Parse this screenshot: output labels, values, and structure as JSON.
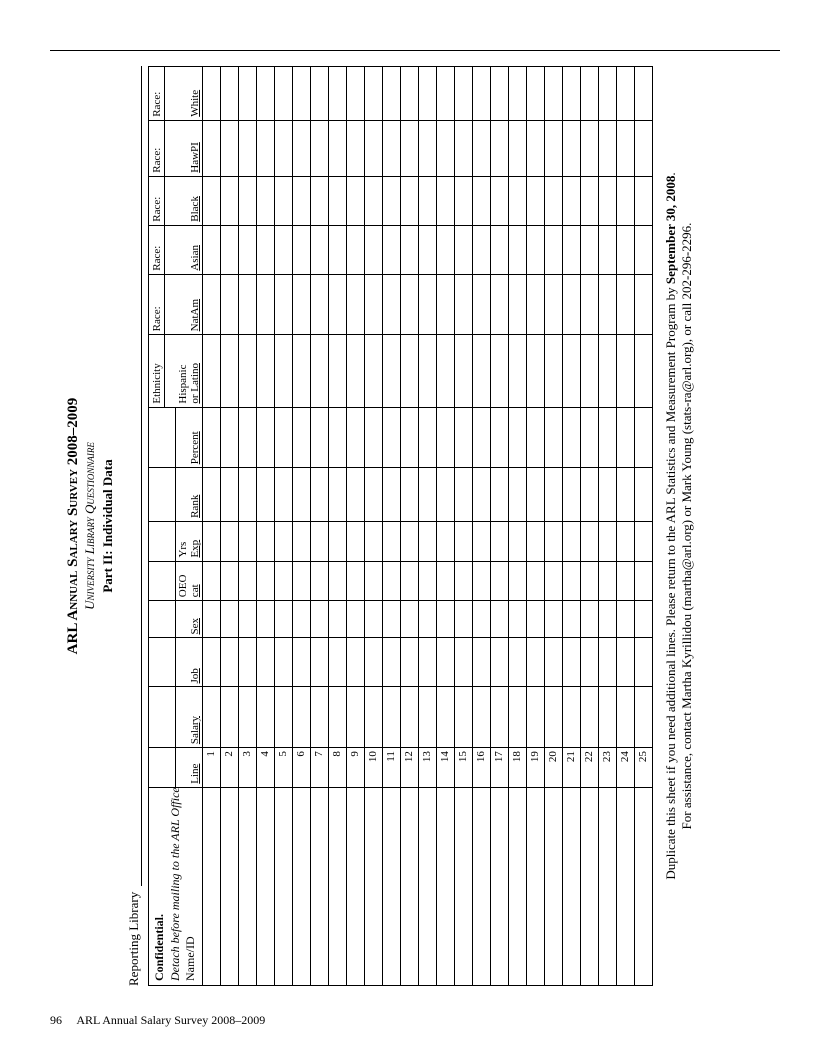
{
  "header": {
    "title": "ARL Annual Salary Survey 2008–2009",
    "subtitle": "University Library Questionnaire",
    "part": "Part II: Individual Data"
  },
  "reporting_label": "Reporting Library",
  "confidential": {
    "bold": "Confidential.",
    "ital": "Detach before mailing to the ARL Office.",
    "name_label": "Name/ID"
  },
  "columns": {
    "line": "Line",
    "salary": "Salary",
    "job": "Job",
    "sex": "Sex",
    "oeo_top": "OEO",
    "oeo_bot": "cat",
    "yrs_top": "Yrs",
    "yrs_bot": "Exp",
    "rank": "Rank",
    "percent": "Percent",
    "ethnicity_top": "Ethnicity",
    "ethnicity_mid": "Hispanic",
    "ethnicity_bot": "or Latino",
    "race_top": "Race:",
    "natam": "NatAm",
    "asian": "Asian",
    "black": "Black",
    "hawpi": "HawPI",
    "white": "White"
  },
  "rows": 25,
  "notes": {
    "line1a": "Duplicate this sheet if you need additional lines. Please return to the ARL Statistics and Measurement Program by ",
    "line1b": "September 30, 2008",
    "line1c": ".",
    "line2": "For assistance, contact Martha Kyrillidou (martha@arl.org) or Mark Young (stats-ra@arl.org), or call 202-296-2296."
  },
  "footer": {
    "page": "96",
    "title": "ARL Annual Salary Survey 2008–2009"
  }
}
